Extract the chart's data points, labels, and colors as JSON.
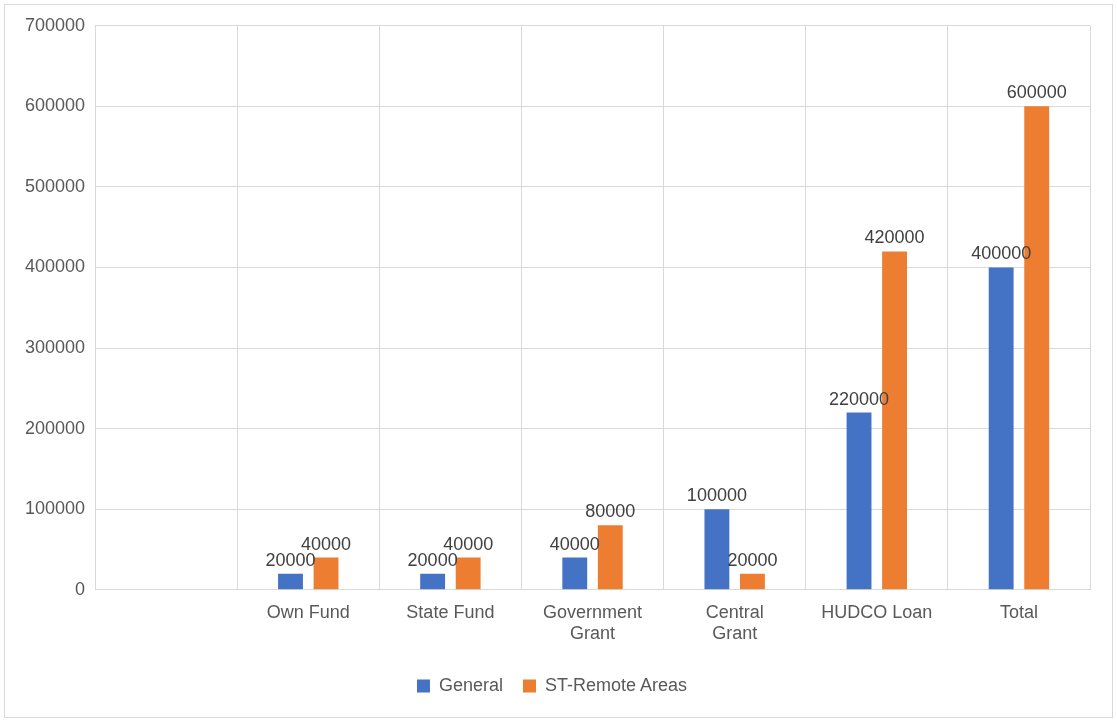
{
  "chart_data": {
    "type": "bar",
    "categories": [
      null,
      "Own Fund",
      "State Fund",
      "Government Grant",
      "Central Grant",
      "HUDCO Loan",
      "Total"
    ],
    "series": [
      {
        "name": "General",
        "color": "#4472c4",
        "values": [
          null,
          20000,
          20000,
          40000,
          100000,
          220000,
          400000
        ]
      },
      {
        "name": "ST-Remote Areas",
        "color": "#ed7d31",
        "values": [
          null,
          40000,
          40000,
          80000,
          20000,
          420000,
          600000
        ]
      }
    ],
    "ylim": [
      0,
      700000
    ],
    "yticks": [
      0,
      100000,
      200000,
      300000,
      400000,
      500000,
      600000,
      700000
    ],
    "grid": true,
    "legend": "bottom",
    "data_labels": true
  }
}
